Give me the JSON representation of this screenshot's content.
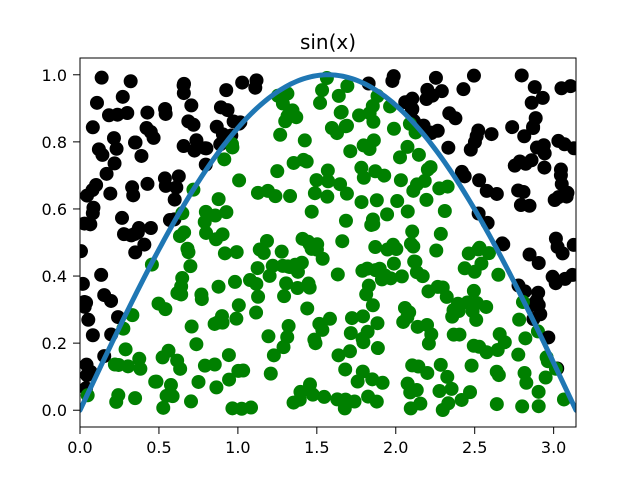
{
  "chart_data": {
    "type": "scatter",
    "title": "sin(x)",
    "xlabel": "",
    "ylabel": "",
    "xlim": [
      0.0,
      3.1416
    ],
    "ylim": [
      -0.05,
      1.05
    ],
    "grid": false,
    "legend": "none",
    "x_ticks": [
      "0.0",
      "0.5",
      "1.0",
      "1.5",
      "2.0",
      "2.5",
      "3.0"
    ],
    "y_ticks": [
      "0.0",
      "0.2",
      "0.4",
      "0.6",
      "0.8",
      "1.0"
    ],
    "x_tick_values": [
      0.0,
      0.5,
      1.0,
      1.5,
      2.0,
      2.5,
      3.0
    ],
    "y_tick_values": [
      0.0,
      0.2,
      0.4,
      0.6,
      0.8,
      1.0
    ],
    "curve": {
      "function": "sin(x)",
      "x_range": [
        0.0,
        3.1416
      ],
      "color": "#1f77b4"
    },
    "series": [
      {
        "color": "#000000",
        "rule": "y > sin(x)"
      },
      {
        "color": "#008000",
        "rule": "y <= sin(x)"
      }
    ],
    "points": {
      "count": 500,
      "x_range": [
        0.0,
        3.1416
      ],
      "y_range": [
        0.0,
        1.0
      ]
    }
  }
}
